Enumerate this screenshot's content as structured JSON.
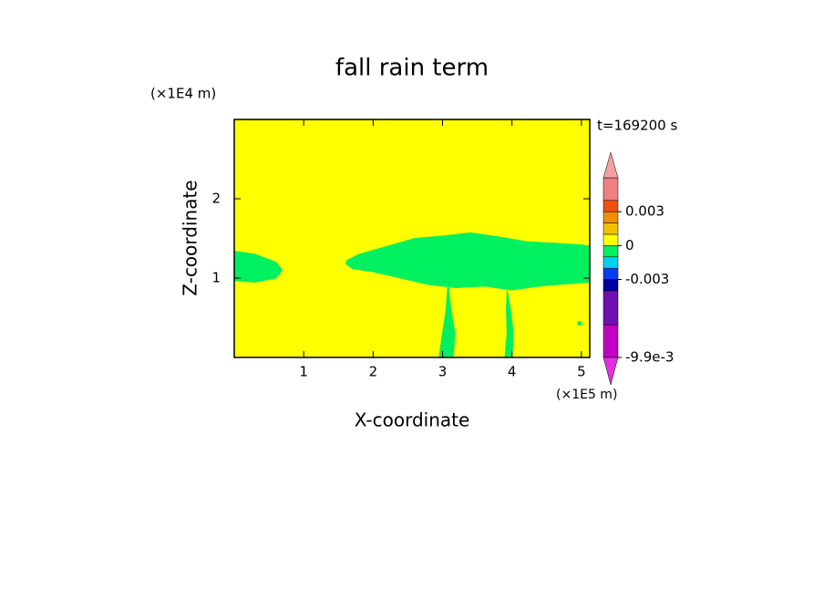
{
  "chart_data": {
    "type": "contour",
    "title": "fall rain term",
    "x_label": "X-coordinate",
    "y_label": "Z-coordinate",
    "x_unit": "(×1E5 m)",
    "y_unit": "(×1E4 m)",
    "time_label": "t=169200 s",
    "xlim": [
      0,
      5.12
    ],
    "ylim": [
      0,
      3
    ],
    "xticks": [
      1,
      2,
      3,
      4,
      5
    ],
    "yticks": [
      1,
      2
    ],
    "field_background": 0.0005,
    "regions": [
      {
        "value": -0.0005,
        "x": [
          0,
          0,
          0.3,
          0.6,
          0.69,
          0.6,
          0.3,
          0
        ],
        "z": [
          1.0,
          1.34,
          1.3,
          1.2,
          1.1,
          1.0,
          0.95,
          0.97
        ]
      },
      {
        "value": -0.0005,
        "x": [
          1.62,
          1.8,
          2.2,
          2.6,
          3.0,
          3.4,
          3.8,
          4.2,
          4.6,
          5.0,
          5.12,
          5.12,
          4.8,
          4.4,
          4.0,
          3.6,
          3.2,
          2.8,
          2.4,
          2.0,
          1.7,
          1.61
        ],
        "z": [
          1.22,
          1.3,
          1.4,
          1.5,
          1.53,
          1.57,
          1.52,
          1.46,
          1.44,
          1.42,
          1.4,
          0.95,
          0.93,
          0.9,
          0.85,
          0.9,
          0.88,
          0.92,
          1.0,
          1.08,
          1.12,
          1.18
        ]
      },
      {
        "value": -0.0005,
        "x": [
          3.08,
          3.12,
          3.18,
          3.15,
          2.95,
          3.0,
          3.05
        ],
        "z": [
          0.95,
          0.6,
          0.3,
          0,
          0,
          0.3,
          0.6
        ]
      },
      {
        "value": -0.0005,
        "x": [
          3.93,
          3.98,
          4.02,
          4.0,
          3.9,
          3.93,
          3.92
        ],
        "z": [
          0.85,
          0.6,
          0.3,
          0,
          0,
          0.3,
          0.6
        ]
      },
      {
        "value": -0.0005,
        "x": [
          4.95,
          5.0,
          5.0,
          4.95
        ],
        "z": [
          0.45,
          0.45,
          0.41,
          0.41
        ]
      }
    ],
    "colorbar": {
      "levels": [
        -0.0099,
        -0.007,
        -0.004,
        -0.003,
        -0.002,
        -0.001,
        0,
        0.001,
        0.002,
        0.003,
        0.004,
        0.006
      ],
      "colors": [
        "#c000c0",
        "#7010b0",
        "#0000a0",
        "#0040f0",
        "#00d0f0",
        "#00f060",
        "#ffff00",
        "#f0c000",
        "#f09000",
        "#f05010",
        "#f08080"
      ],
      "under_color": "#e030e0",
      "over_color": "#f4a0a0",
      "ticks": [
        {
          "value": -0.0099,
          "label": "-9.9e-3"
        },
        -0.003,
        0,
        0.003
      ]
    }
  }
}
